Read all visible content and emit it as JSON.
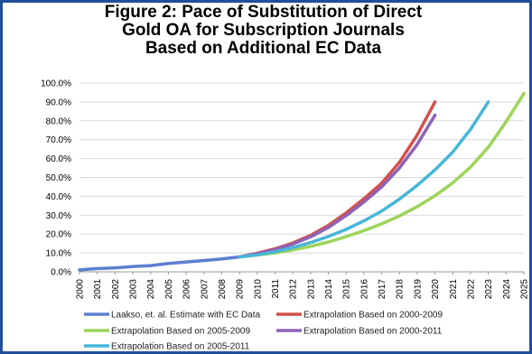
{
  "chart_data": {
    "type": "line",
    "title_lines": [
      "Figure 2: Pace of Substitution of Direct",
      "Gold OA for Subscription Journals",
      "Based on Additional EC Data"
    ],
    "y_ticks": [
      "0.0%",
      "10.0%",
      "20.0%",
      "30.0%",
      "40.0%",
      "50.0%",
      "60.0%",
      "70.0%",
      "80.0%",
      "90.0%",
      "100.0%"
    ],
    "ylim": [
      0,
      100
    ],
    "x_ticks": [
      "2000",
      "2001",
      "2002",
      "2003",
      "2004",
      "2005",
      "2006",
      "2007",
      "2008",
      "2009",
      "2010",
      "2011",
      "2012",
      "2013",
      "2014",
      "2015",
      "2016",
      "2017",
      "2018",
      "2019",
      "2020",
      "2021",
      "2022",
      "2023",
      "2024",
      "2025"
    ],
    "xlim": [
      2000,
      2025
    ],
    "grid": "horizontal",
    "legend_position": "bottom",
    "series": [
      {
        "name": "Laakso, et. al. Estimate with EC Data",
        "color": "#5b7fd1",
        "x": [
          2000,
          2001,
          2002,
          2003,
          2004,
          2005,
          2006,
          2007,
          2008,
          2009
        ],
        "y": [
          1.0,
          1.7,
          2.1,
          2.8,
          3.3,
          4.4,
          5.2,
          6.0,
          6.8,
          7.9
        ]
      },
      {
        "name": "Extrapolation Based on 2000-2009",
        "color": "#d2514c",
        "x": [
          2009,
          2010,
          2011,
          2012,
          2013,
          2014,
          2015,
          2016,
          2017,
          2018,
          2019,
          2020
        ],
        "y": [
          7.9,
          9.8,
          12.2,
          15.3,
          19.3,
          24.6,
          31.2,
          38.7,
          47.0,
          58.0,
          72.5,
          90.0
        ]
      },
      {
        "name": "Extrapolation Based on 2005-2009",
        "color": "#9dd45a",
        "x": [
          2009,
          2010,
          2011,
          2012,
          2013,
          2014,
          2015,
          2016,
          2017,
          2018,
          2019,
          2020,
          2021,
          2022,
          2023,
          2024,
          2025
        ],
        "y": [
          7.9,
          8.9,
          10.0,
          11.6,
          13.5,
          15.8,
          18.6,
          21.8,
          25.4,
          29.6,
          34.5,
          40.3,
          47.2,
          55.5,
          66.0,
          79.5,
          94.5
        ]
      },
      {
        "name": "Extrapolation Based on 2000-2011",
        "color": "#8e62b8",
        "x": [
          2009,
          2010,
          2011,
          2012,
          2013,
          2014,
          2015,
          2016,
          2017,
          2018,
          2019,
          2020
        ],
        "y": [
          7.9,
          9.5,
          11.8,
          14.7,
          18.5,
          23.5,
          29.8,
          37.0,
          45.0,
          55.0,
          67.5,
          83.0
        ]
      },
      {
        "name": "Extrapolation Based on 2005-2011",
        "color": "#48b6da",
        "x": [
          2009,
          2010,
          2011,
          2012,
          2013,
          2014,
          2015,
          2016,
          2017,
          2018,
          2019,
          2020,
          2021,
          2022,
          2023
        ],
        "y": [
          7.9,
          9.0,
          10.6,
          12.8,
          15.5,
          18.7,
          22.5,
          27.0,
          32.2,
          38.5,
          45.8,
          54.0,
          63.5,
          75.5,
          90.0
        ]
      }
    ]
  }
}
